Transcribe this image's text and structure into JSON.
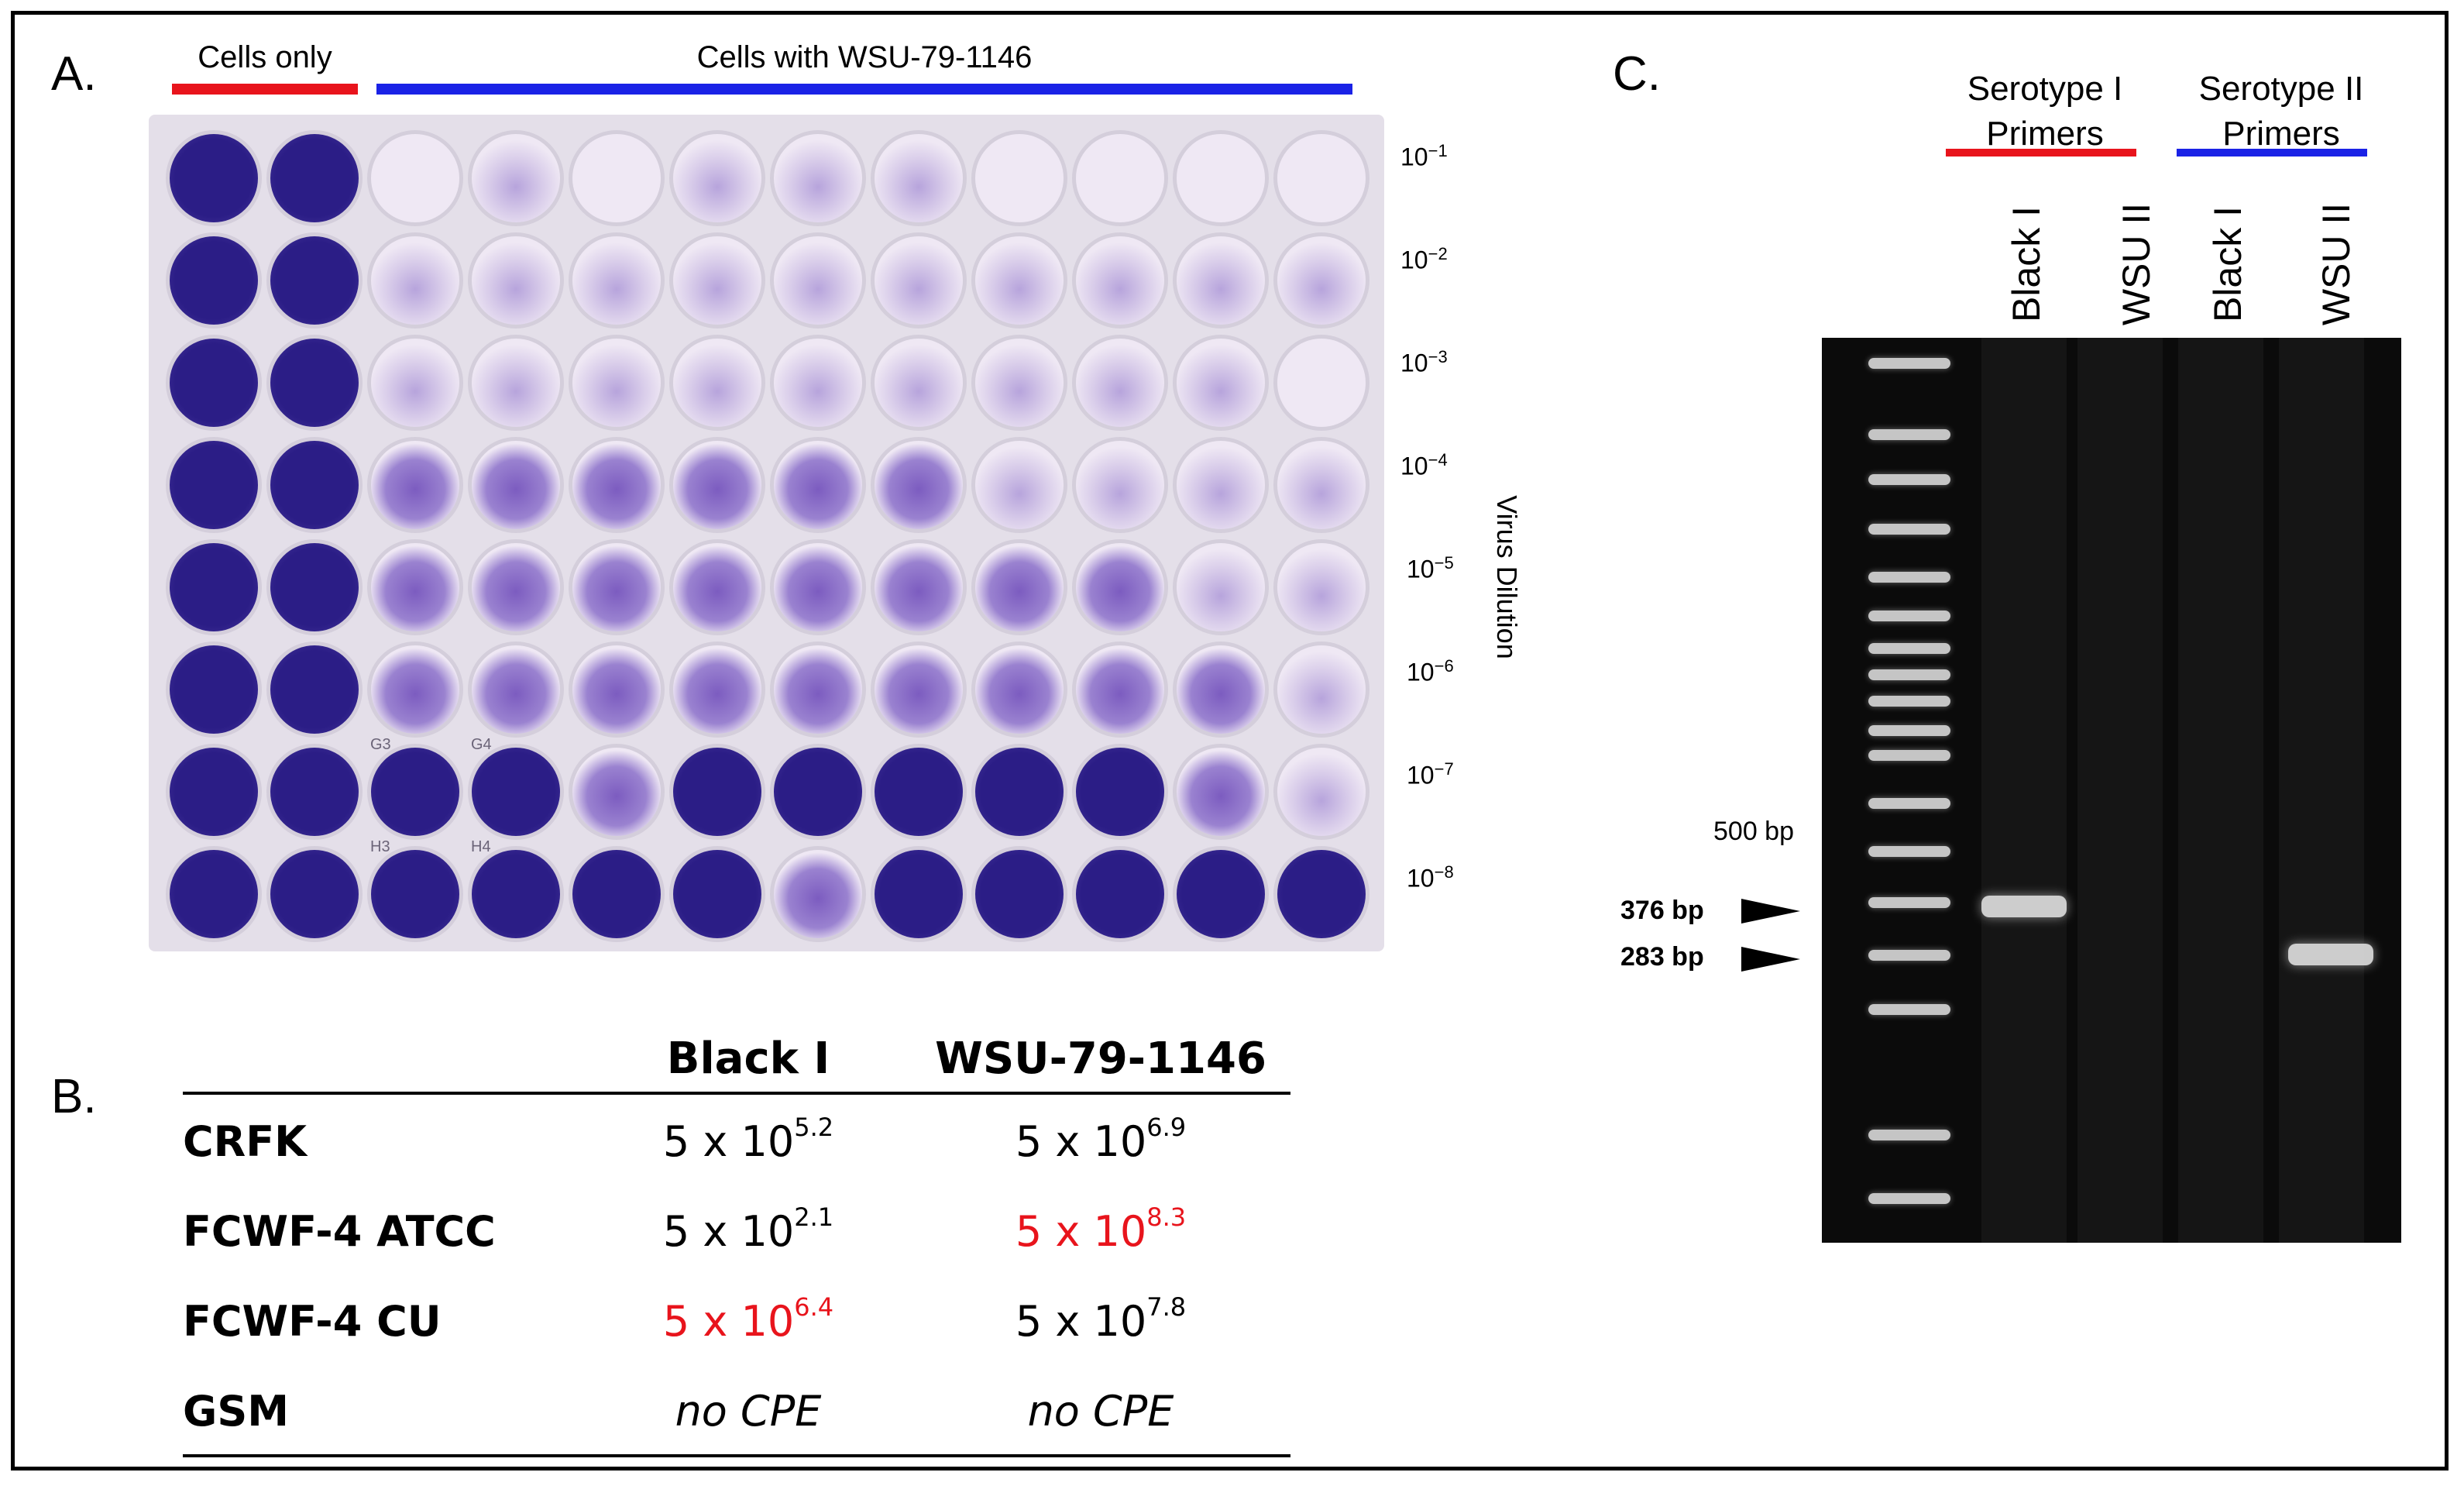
{
  "panel_a": {
    "label": "A.",
    "header_cells_only": "Cells only",
    "header_cells_with": "Cells with WSU-79-1146",
    "colors": {
      "cells_only_bar": "#e8141c",
      "cells_with_bar": "#1a22e6"
    },
    "dilutions": [
      {
        "base": "10",
        "exp": "−1"
      },
      {
        "base": "10",
        "exp": "−2"
      },
      {
        "base": "10",
        "exp": "−3"
      },
      {
        "base": "10",
        "exp": "−4"
      },
      {
        "base": "10",
        "exp": "−5"
      },
      {
        "base": "10",
        "exp": "−6"
      },
      {
        "base": "10",
        "exp": "−7"
      },
      {
        "base": "10",
        "exp": "−8"
      }
    ],
    "axis_label": "Virus Dilution",
    "well_labels": [
      "G3",
      "G4",
      "H3",
      "H4"
    ],
    "stain_colors": {
      "full": "#2b1d86",
      "partial": "#7c5cc0",
      "clear": "#efe8f4"
    }
  },
  "panel_b": {
    "label": "B.",
    "columns": [
      "Black I",
      "WSU-79-1146"
    ],
    "rows": [
      {
        "name": "CRFK",
        "black_base": "5 x 10",
        "black_exp": "5.2",
        "black_red": false,
        "wsu_base": "5 x 10",
        "wsu_exp": "6.9",
        "wsu_red": false
      },
      {
        "name": "FCWF-4 ATCC",
        "black_base": "5 x 10",
        "black_exp": "2.1",
        "black_red": false,
        "wsu_base": "5 x 10",
        "wsu_exp": "8.3",
        "wsu_red": true
      },
      {
        "name": "FCWF-4 CU",
        "black_base": "5 x 10",
        "black_exp": "6.4",
        "black_red": true,
        "wsu_base": "5 x 10",
        "wsu_exp": "7.8",
        "wsu_red": false
      },
      {
        "name": "GSM",
        "black_text": "no CPE",
        "wsu_text": "no CPE"
      }
    ],
    "highlight_color": "#e8141c"
  },
  "panel_c": {
    "label": "C.",
    "group1_title": "Serotype I\nPrimers",
    "group2_title": "Serotype II\nPrimers",
    "group1_color": "#e8141c",
    "group2_color": "#1a22e6",
    "lanes": [
      "Black I",
      "WSU II",
      "Black I",
      "WSU II"
    ],
    "markers": [
      {
        "text": "500 bp",
        "bold": false
      },
      {
        "text": "376 bp",
        "bold": true
      },
      {
        "text": "283 bp",
        "bold": true
      }
    ]
  }
}
